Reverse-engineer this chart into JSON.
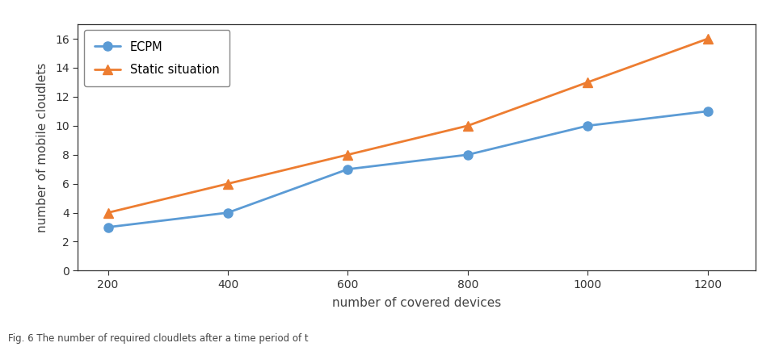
{
  "x": [
    200,
    400,
    600,
    800,
    1000,
    1200
  ],
  "ecpm_y": [
    3,
    4,
    7,
    8,
    10,
    11
  ],
  "static_y": [
    4,
    6,
    8,
    10,
    13,
    16
  ],
  "ecpm_color": "#5B9BD5",
  "static_color": "#ED7D31",
  "ecpm_label": "ECPM",
  "static_label": "Static situation",
  "xlabel": "number of covered devices",
  "ylabel": "number of mobile cloudlets",
  "xlim": [
    150,
    1280
  ],
  "ylim": [
    0,
    17
  ],
  "xticks": [
    200,
    400,
    600,
    800,
    1000,
    1200
  ],
  "yticks": [
    0,
    2,
    4,
    6,
    8,
    10,
    12,
    14,
    16
  ],
  "caption": "Fig. 6 The number of required cloudlets after a time period of t",
  "linewidth": 2.0,
  "markersize": 8
}
